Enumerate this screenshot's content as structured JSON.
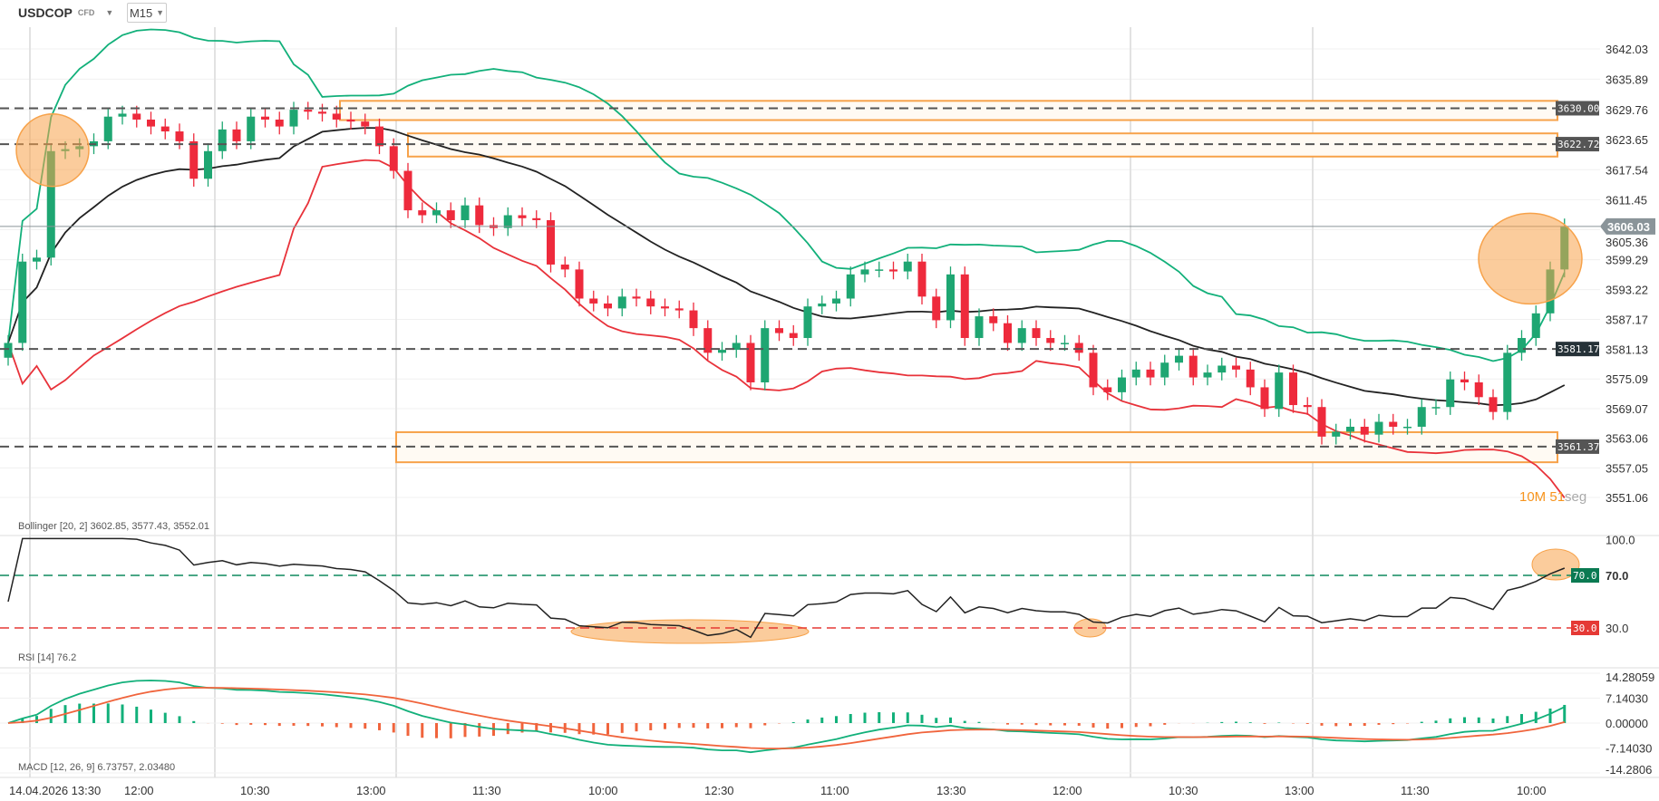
{
  "header": {
    "symbol": "USDCOP",
    "instrument_type": "CFD",
    "timeframe": "M15"
  },
  "price_axis": {
    "ticks": [
      "3642.03",
      "3635.89",
      "3629.76",
      "3623.65",
      "3617.54",
      "3611.45",
      "3605.36",
      "3599.29",
      "3593.22",
      "3587.17",
      "3581.13",
      "3575.09",
      "3569.07",
      "3563.06",
      "3557.05",
      "3551.06"
    ]
  },
  "levels": [
    {
      "label": "3630.00",
      "value": 3630.0
    },
    {
      "label": "3622.72",
      "value": 3622.72
    },
    {
      "label": "3581.17",
      "value": 3581.17
    },
    {
      "label": "3561.37",
      "value": 3561.37
    }
  ],
  "current_price": {
    "label": "3606.03",
    "value": 3606.03
  },
  "countdown": {
    "value": "10M 51",
    "unit": "seg"
  },
  "indicators": {
    "bollinger": "Bollinger [20, 2] 3602.85, 3577.43, 3552.01",
    "rsi": "RSI [14] 76.2",
    "macd": "MACD [12, 26, 9] 6.73757, 2.03480"
  },
  "rsi_axis": {
    "ticks": [
      "100.0",
      "70.0",
      "30.0"
    ],
    "overbought_tag": "70.0",
    "oversold_tag": "30.0"
  },
  "macd_axis": {
    "ticks": [
      "14.28059",
      "7.14030",
      "0.00000",
      "-7.14030",
      "-14.2806"
    ]
  },
  "time_axis": [
    "14.04.2026 13:30",
    "12:00",
    "10:30",
    "13:00",
    "11:30",
    "10:00",
    "12:30",
    "11:00",
    "13:30",
    "12:00",
    "10:30",
    "13:00",
    "11:30",
    "10:00"
  ],
  "colors": {
    "up": "#1ea672",
    "down": "#ee2a3c",
    "upper_band": "#12b07a",
    "middle_band": "#222222",
    "lower_band": "#e8323a",
    "annotation": "#f7a24a"
  },
  "chart_data": {
    "type": "candlestick",
    "ylim": [
      3551.06,
      3642.03
    ],
    "close": [
      3582.4,
      3598.9,
      3599.7,
      3621.3,
      3621.7,
      3622.3,
      3623.3,
      3628.3,
      3628.9,
      3627.7,
      3626.3,
      3625.3,
      3623.3,
      3615.7,
      3621.3,
      3625.7,
      3623.3,
      3628.3,
      3627.7,
      3626.3,
      3629.7,
      3629.3,
      3628.9,
      3627.7,
      3627.3,
      3626.3,
      3622.3,
      3617.3,
      3609.3,
      3608.3,
      3609.3,
      3607.3,
      3610.3,
      3606.3,
      3605.7,
      3608.3,
      3607.7,
      3607.3,
      3598.3,
      3597.3,
      3591.4,
      3590.4,
      3589.4,
      3591.8,
      3591.4,
      3589.8,
      3589.4,
      3589.0,
      3585.4,
      3580.4,
      3581.0,
      3582.4,
      3574.4,
      3585.4,
      3584.4,
      3583.4,
      3589.8,
      3590.4,
      3591.4,
      3596.3,
      3597.3,
      3597.3,
      3596.9,
      3598.9,
      3591.8,
      3587.0,
      3596.3,
      3583.4,
      3587.8,
      3586.4,
      3582.4,
      3585.4,
      3583.4,
      3582.4,
      3582.4,
      3580.4,
      3573.4,
      3572.4,
      3575.4,
      3577.0,
      3575.4,
      3578.4,
      3579.8,
      3575.4,
      3576.4,
      3577.8,
      3577.0,
      3573.4,
      3569.0,
      3576.4,
      3569.8,
      3569.4,
      3563.4,
      3564.4,
      3565.4,
      3563.8,
      3566.4,
      3565.4,
      3565.4,
      3569.4,
      3569.4,
      3575.0,
      3574.4,
      3571.4,
      3568.4,
      3580.4,
      3583.4,
      3588.4,
      3597.3,
      3606.03
    ]
  }
}
